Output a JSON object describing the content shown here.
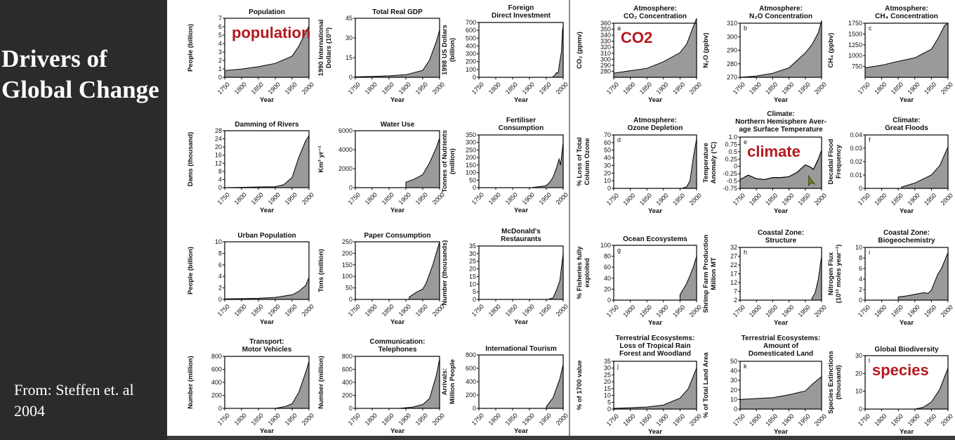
{
  "slide": {
    "title": "Drivers of\nGlobal Change",
    "citation": "From: Steffen et. al\n2004"
  },
  "colors": {
    "sidebar_bg": "#2b2b2b",
    "area_fill": "#9a9a9a",
    "overlay_text": "#b5181d"
  },
  "cursor_icon": "pointer-arrow-icon",
  "chart_data": [
    {
      "id": "population",
      "type": "area",
      "title": [
        "Population"
      ],
      "ylabel": [
        "People (billion)"
      ],
      "xlabel": "Year",
      "ylim": [
        0,
        7
      ],
      "yticks": [
        0,
        1,
        2,
        3,
        4,
        5,
        6,
        7
      ],
      "xticks": [
        1750,
        1800,
        1850,
        1900,
        1950,
        2000
      ],
      "x": [
        1750,
        1800,
        1850,
        1900,
        1950,
        1970,
        1990,
        2000
      ],
      "y": [
        0.8,
        0.98,
        1.26,
        1.65,
        2.52,
        3.7,
        5.3,
        6.07
      ],
      "overlay": "population"
    },
    {
      "id": "gdp",
      "type": "area",
      "title": [
        "Total Real GDP"
      ],
      "ylabel": [
        "1990 International",
        "Dollars (10¹²)"
      ],
      "xlabel": "Year",
      "ylim": [
        0,
        45
      ],
      "yticks": [
        0,
        15,
        30,
        45
      ],
      "xticks": [
        1750,
        1800,
        1850,
        1900,
        1950,
        2000
      ],
      "x": [
        1750,
        1800,
        1850,
        1900,
        1950,
        1970,
        1990,
        2000
      ],
      "y": [
        0.4,
        0.7,
        1.1,
        2.0,
        5.3,
        13,
        27,
        36
      ]
    },
    {
      "id": "fdi",
      "type": "area",
      "title": [
        "Foreign",
        "Direct Investment"
      ],
      "ylabel": [
        "1998 US Dollars",
        "(billion)"
      ],
      "xlabel": "Year",
      "ylim": [
        0,
        700
      ],
      "yticks": [
        0,
        100,
        200,
        300,
        400,
        500,
        600,
        700
      ],
      "xticks": [
        1750,
        1800,
        1850,
        1900,
        1950,
        2000
      ],
      "x": [
        1970,
        1975,
        1980,
        1985,
        1990,
        1995,
        1998,
        2000
      ],
      "y": [
        10,
        25,
        60,
        50,
        200,
        330,
        600,
        650
      ]
    },
    {
      "id": "dams",
      "type": "area",
      "title": [
        "Damming of Rivers"
      ],
      "ylabel": [
        "Dams (thousand)"
      ],
      "xlabel": "Year",
      "ylim": [
        0,
        28
      ],
      "yticks": [
        0,
        4,
        8,
        12,
        16,
        20,
        24,
        28
      ],
      "xticks": [
        1750,
        1800,
        1850,
        1900,
        1950,
        2000
      ],
      "x": [
        1750,
        1900,
        1925,
        1950,
        1970,
        1990,
        2000
      ],
      "y": [
        0,
        0.5,
        1.5,
        5,
        15,
        23,
        25.5
      ]
    },
    {
      "id": "water",
      "type": "area",
      "title": [
        "Water Use"
      ],
      "ylabel": [
        "Km³ yr⁻¹"
      ],
      "xlabel": "Year",
      "ylim": [
        0,
        6000
      ],
      "yticks": [
        0,
        2000,
        4000,
        6000
      ],
      "xticks": [
        1750,
        1800,
        1850,
        1900,
        1950,
        2000
      ],
      "x": [
        1900,
        1925,
        1950,
        1970,
        1990,
        2000
      ],
      "y": [
        580,
        900,
        1380,
        2600,
        4200,
        5200
      ]
    },
    {
      "id": "fertiliser",
      "type": "area",
      "title": [
        "Fertiliser",
        "Consumption"
      ],
      "ylabel": [
        "Tonnes of Nutrients",
        "(million)"
      ],
      "xlabel": "Year",
      "ylim": [
        0,
        350
      ],
      "yticks": [
        0,
        50,
        100,
        150,
        200,
        250,
        300,
        350
      ],
      "xticks": [
        1750,
        1800,
        1850,
        1900,
        1950,
        2000
      ],
      "x": [
        1910,
        1940,
        1950,
        1960,
        1970,
        1980,
        1988,
        1992,
        2000
      ],
      "y": [
        2,
        10,
        15,
        35,
        70,
        130,
        190,
        150,
        300
      ]
    },
    {
      "id": "urban",
      "type": "area",
      "title": [
        "Urban Population"
      ],
      "ylabel": [
        "People (billion)"
      ],
      "xlabel": "Year",
      "ylim": [
        0,
        10
      ],
      "yticks": [
        0,
        2,
        4,
        6,
        8,
        10
      ],
      "xticks": [
        1750,
        1800,
        1850,
        1900,
        1950,
        2000
      ],
      "x": [
        1750,
        1800,
        1850,
        1900,
        1950,
        1970,
        1990,
        2000
      ],
      "y": [
        0.1,
        0.13,
        0.2,
        0.35,
        0.8,
        1.4,
        2.4,
        3.8
      ]
    },
    {
      "id": "paper",
      "type": "area",
      "title": [
        "Paper Consumption"
      ],
      "ylabel": [
        "Tons (million)"
      ],
      "xlabel": "Year",
      "ylim": [
        0,
        250
      ],
      "yticks": [
        0,
        50,
        100,
        150,
        200,
        250
      ],
      "xticks": [
        1750,
        1800,
        1850,
        1900,
        1950,
        2000
      ],
      "x": [
        1910,
        1930,
        1950,
        1960,
        1970,
        1980,
        1990,
        2000
      ],
      "y": [
        10,
        30,
        45,
        70,
        110,
        150,
        200,
        250
      ]
    },
    {
      "id": "mcdonalds",
      "type": "area",
      "title": [
        "McDonald's",
        "Restaurants"
      ],
      "ylabel": [
        "Number (thousands)"
      ],
      "xlabel": "Year",
      "ylim": [
        0,
        35
      ],
      "yticks": [
        0,
        5,
        10,
        15,
        20,
        25,
        30,
        35
      ],
      "xticks": [
        1750,
        1800,
        1850,
        1900,
        1950,
        2000
      ],
      "x": [
        1955,
        1970,
        1980,
        1990,
        2000
      ],
      "y": [
        0,
        1,
        6,
        12,
        30
      ]
    },
    {
      "id": "vehicles",
      "type": "area",
      "title": [
        "Transport:",
        "Motor Vehicles"
      ],
      "ylabel": [
        "Number (million)"
      ],
      "xlabel": "Year",
      "ylim": [
        0,
        800
      ],
      "yticks": [
        0,
        200,
        400,
        600,
        800
      ],
      "xticks": [
        1750,
        1800,
        1850,
        1900,
        1950,
        2000
      ],
      "x": [
        1900,
        1930,
        1950,
        1970,
        1990,
        2000
      ],
      "y": [
        0,
        30,
        70,
        250,
        550,
        720
      ]
    },
    {
      "id": "telephones",
      "type": "area",
      "title": [
        "Communication:",
        "Telephones"
      ],
      "ylabel": [
        "Number (million)"
      ],
      "xlabel": "Year",
      "ylim": [
        0,
        800
      ],
      "yticks": [
        0,
        200,
        400,
        600,
        800
      ],
      "xticks": [
        1750,
        1800,
        1850,
        1900,
        1950,
        2000
      ],
      "x": [
        1880,
        1920,
        1950,
        1970,
        1990,
        2000
      ],
      "y": [
        0,
        20,
        60,
        150,
        500,
        760
      ]
    },
    {
      "id": "tourism",
      "type": "area",
      "title": [
        "International Tourism"
      ],
      "ylabel": [
        "Arrivals:",
        "Million People"
      ],
      "xlabel": "Year",
      "ylim": [
        0,
        800
      ],
      "yticks": [
        0,
        200,
        400,
        600,
        800
      ],
      "xticks": [
        1750,
        1800,
        1850,
        1900,
        1950,
        2000
      ],
      "x": [
        1950,
        1970,
        1990,
        2000
      ],
      "y": [
        25,
        160,
        440,
        660
      ]
    },
    {
      "id": "co2",
      "type": "area",
      "panel": "a",
      "title": [
        "Atmosphere:",
        "CO₂ Concentration"
      ],
      "ylabel": [
        "CO₂ (ppmv)"
      ],
      "xlabel": "Year",
      "ylim": [
        270,
        360
      ],
      "yticks": [
        280,
        290,
        300,
        310,
        320,
        330,
        340,
        350,
        360
      ],
      "xticks": [
        1750,
        1800,
        1850,
        1900,
        1950,
        2000
      ],
      "x": [
        1750,
        1800,
        1850,
        1900,
        1950,
        1970,
        1990,
        2000
      ],
      "y": [
        277,
        281,
        285,
        296,
        311,
        325,
        354,
        368
      ],
      "overlay": "CO2"
    },
    {
      "id": "n2o",
      "type": "area",
      "panel": "b",
      "title": [
        "Atmosphere:",
        "N₂O Concentration"
      ],
      "ylabel": [
        "N₂O (ppbv)"
      ],
      "xlabel": "Year",
      "ylim": [
        270,
        310
      ],
      "yticks": [
        270,
        280,
        290,
        300,
        310
      ],
      "xticks": [
        1750,
        1800,
        1850,
        1900,
        1950,
        2000
      ],
      "x": [
        1750,
        1800,
        1850,
        1900,
        1950,
        1970,
        1990,
        2000
      ],
      "y": [
        270,
        271,
        273,
        277,
        288,
        294,
        303,
        312
      ]
    },
    {
      "id": "ch4",
      "type": "area",
      "panel": "c",
      "title": [
        "Atmosphere:",
        "CH₄ Concentration"
      ],
      "ylabel": [
        "CH₄ (ppbv)"
      ],
      "xlabel": "Year",
      "ylim": [
        500,
        1750
      ],
      "yticks": [
        750,
        1000,
        1250,
        1500,
        1750
      ],
      "xticks": [
        1750,
        1800,
        1850,
        1900,
        1950,
        2000
      ],
      "x": [
        1750,
        1800,
        1850,
        1900,
        1950,
        1970,
        1990,
        2000
      ],
      "y": [
        720,
        780,
        870,
        950,
        1150,
        1400,
        1700,
        1750
      ]
    },
    {
      "id": "ozone",
      "type": "area",
      "panel": "d",
      "title": [
        "Atmosphere:",
        "Ozone Depletion"
      ],
      "ylabel": [
        "% Loss of Total",
        "Column Ozone"
      ],
      "xlabel": "Year",
      "ylim": [
        0,
        70
      ],
      "yticks": [
        0,
        10,
        20,
        30,
        40,
        50,
        60,
        70
      ],
      "xticks": [
        1750,
        1800,
        1850,
        1900,
        1950,
        2000
      ],
      "x": [
        1955,
        1970,
        1980,
        1990,
        2000
      ],
      "y": [
        0,
        2,
        10,
        40,
        65
      ]
    },
    {
      "id": "temperature",
      "type": "line",
      "panel": "e",
      "title": [
        "Climate:",
        "Northern Hemisphere Aver-",
        "age Surface Temperature"
      ],
      "ylabel": [
        "Temperature",
        "Anomaly (°C)"
      ],
      "xlabel": "Year",
      "ylim": [
        -0.75,
        1.0
      ],
      "yticks": [
        -0.75,
        -0.5,
        -0.25,
        0,
        0.25,
        0.5,
        0.75,
        1.0
      ],
      "ytick_labels": [
        "-0.75",
        "-0.5",
        "-0.25",
        "0",
        "0.25",
        "0.5",
        "0.75",
        "1.0"
      ],
      "xticks": [
        1750,
        1800,
        1850,
        1900,
        1950,
        2000
      ],
      "x": [
        1750,
        1775,
        1800,
        1825,
        1850,
        1875,
        1900,
        1925,
        1950,
        1965,
        1975,
        1990,
        2000
      ],
      "y": [
        -0.45,
        -0.3,
        -0.42,
        -0.45,
        -0.38,
        -0.38,
        -0.35,
        -0.2,
        0.05,
        -0.02,
        -0.1,
        0.25,
        0.55
      ],
      "overlay": "climate"
    },
    {
      "id": "floods",
      "type": "area",
      "panel": "f",
      "title": [
        "Climate:",
        "Great Floods"
      ],
      "ylabel": [
        "Decadal Flood",
        "Frequency"
      ],
      "xlabel": "Year",
      "ylim": [
        0,
        0.04
      ],
      "yticks": [
        0,
        0.01,
        0.02,
        0.03,
        0.04
      ],
      "ytick_labels": [
        "0",
        "0.01",
        "0.02",
        "0.03",
        "0.04"
      ],
      "xticks": [
        1750,
        1800,
        1850,
        1900,
        1950,
        2000
      ],
      "x": [
        1860,
        1900,
        1950,
        1975,
        2000
      ],
      "y": [
        0.001,
        0.004,
        0.01,
        0.017,
        0.031
      ]
    },
    {
      "id": "fisheries",
      "type": "area",
      "panel": "g",
      "title": [
        "Ocean Ecosystems"
      ],
      "ylabel": [
        "% Fisheries fully",
        "exploited"
      ],
      "xlabel": "Year",
      "ylim": [
        0,
        100
      ],
      "yticks": [
        0,
        20,
        40,
        60,
        80,
        100
      ],
      "xticks": [
        1750,
        1800,
        1850,
        1900,
        1950,
        2000
      ],
      "x": [
        1950,
        1960,
        1970,
        1980,
        1990,
        2000
      ],
      "y": [
        10,
        20,
        30,
        45,
        60,
        80
      ]
    },
    {
      "id": "shrimp",
      "type": "area",
      "panel": "h",
      "title": [
        "Coastal Zone:",
        "Structure"
      ],
      "ylabel": [
        "Shrimp Farm Production",
        "Million MT"
      ],
      "xlabel": "Year",
      "ylim": [
        2,
        32
      ],
      "yticks": [
        2,
        7,
        12,
        17,
        22,
        27,
        32
      ],
      "xticks": [
        1750,
        1800,
        1850,
        1900,
        1950,
        2000
      ],
      "x": [
        1970,
        1980,
        1990,
        2000
      ],
      "y": [
        3,
        6,
        14,
        27
      ]
    },
    {
      "id": "nitrogen",
      "type": "area",
      "panel": "i",
      "title": [
        "Coastal Zone:",
        "Biogeochemistry"
      ],
      "ylabel": [
        "Nitrogen Flux",
        "(10¹² moles year⁻¹)"
      ],
      "xlabel": "Year",
      "ylim": [
        0,
        10
      ],
      "yticks": [
        0,
        2,
        4,
        6,
        8,
        10
      ],
      "xticks": [
        1750,
        1800,
        1850,
        1900,
        1950,
        2000
      ],
      "x": [
        1850,
        1875,
        1900,
        1925,
        1940,
        1950,
        1960,
        1970,
        1980,
        1990,
        2000
      ],
      "y": [
        0.6,
        0.8,
        1.1,
        1.4,
        1.3,
        1.9,
        3.5,
        5,
        6,
        7.5,
        9
      ]
    },
    {
      "id": "forest",
      "type": "area",
      "panel": "j",
      "title": [
        "Terrestrial Ecosystems:",
        "Loss of Tropical Rain",
        "Forest and Woodland"
      ],
      "ylabel": [
        "% of 1700 value"
      ],
      "xlabel": "Year",
      "ylim": [
        0,
        35
      ],
      "yticks": [
        0,
        5,
        10,
        15,
        20,
        25,
        30,
        35
      ],
      "xticks": [
        1750,
        1800,
        1850,
        1900,
        1950,
        2000
      ],
      "x": [
        1750,
        1800,
        1850,
        1900,
        1950,
        1975,
        2000
      ],
      "y": [
        0.5,
        1,
        1.5,
        3,
        8,
        15,
        30
      ]
    },
    {
      "id": "landuse",
      "type": "area",
      "panel": "k",
      "title": [
        "Terrestrial Ecosystems:",
        "Amount of",
        "Domesticated Land"
      ],
      "ylabel": [
        "% of Total Land Area"
      ],
      "xlabel": "Year",
      "ylim": [
        0,
        50
      ],
      "yticks": [
        0,
        10,
        20,
        30,
        40,
        50
      ],
      "xticks": [
        1750,
        1800,
        1850,
        1900,
        1950,
        2000
      ],
      "x": [
        1750,
        1800,
        1850,
        1900,
        1950,
        1975,
        2000
      ],
      "y": [
        10,
        11,
        12,
        15,
        19,
        27,
        34
      ]
    },
    {
      "id": "biodiversity",
      "type": "area",
      "panel": "l",
      "title": [
        "Global Biodiversity"
      ],
      "ylabel": [
        "Species Extinctions",
        "(thousand)"
      ],
      "xlabel": "Year",
      "ylim": [
        0,
        30
      ],
      "yticks": [
        0,
        10,
        20,
        30
      ],
      "xticks": [
        1750,
        1800,
        1850,
        1900,
        1950,
        2000
      ],
      "x": [
        1900,
        1925,
        1950,
        1975,
        2000
      ],
      "y": [
        0,
        1,
        4,
        11,
        23
      ],
      "overlay": "species"
    }
  ]
}
